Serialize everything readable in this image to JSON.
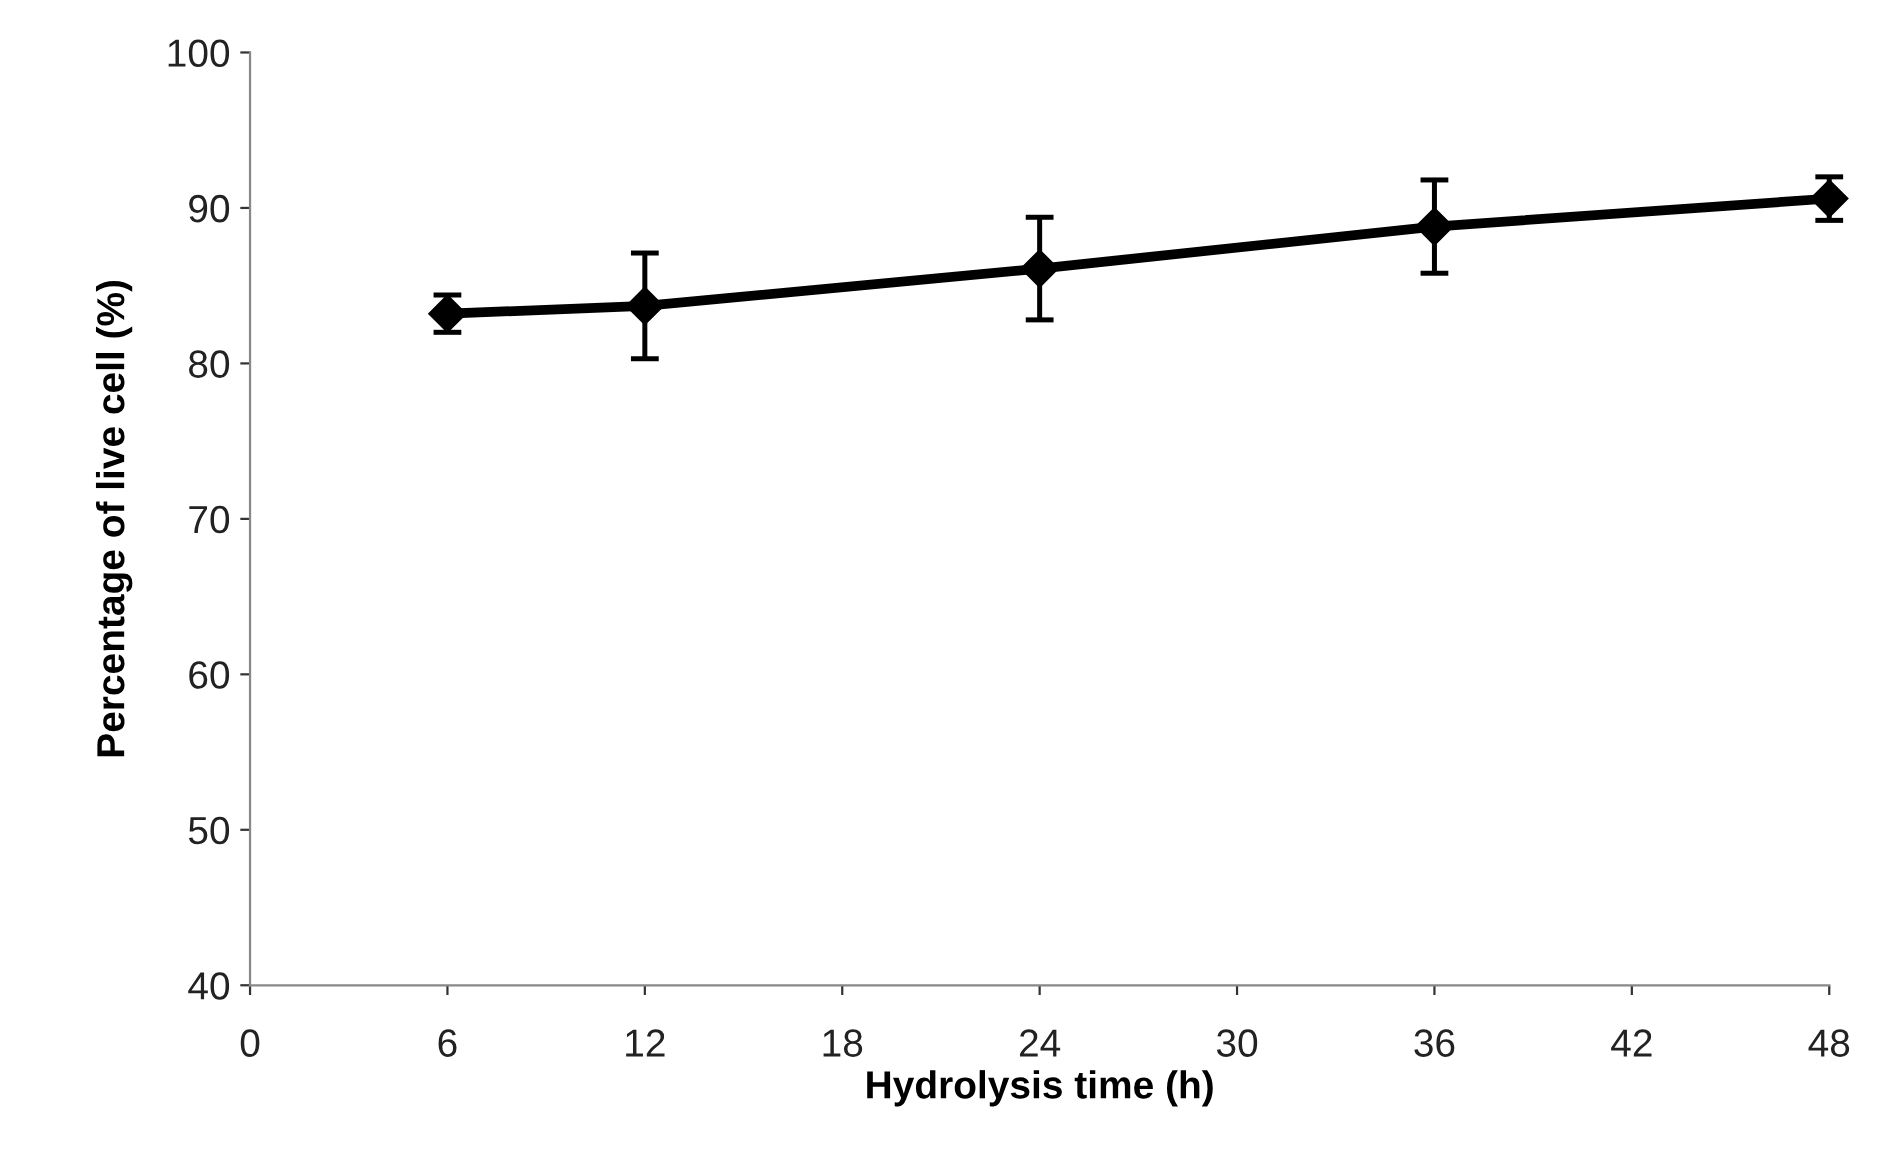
{
  "chart_data": {
    "type": "line",
    "xlabel": "Hydrolysis time (h)",
    "ylabel": "Percentage of live cell (%)",
    "x": [
      6,
      12,
      24,
      36,
      48
    ],
    "series": [
      {
        "color": "#000000",
        "values": [
          83.2,
          83.7,
          86.1,
          88.8,
          90.6
        ],
        "errors": [
          1.2,
          3.4,
          3.3,
          3.0,
          1.4
        ]
      }
    ],
    "xlim": [
      0,
      48
    ],
    "xticks": [
      0,
      6,
      12,
      18,
      24,
      30,
      36,
      42,
      48
    ],
    "ylim": [
      40,
      100
    ],
    "yticks": [
      40,
      50,
      60,
      70,
      80,
      90,
      100
    ],
    "grid": false,
    "marker": "diamond",
    "line_style": "solid"
  }
}
